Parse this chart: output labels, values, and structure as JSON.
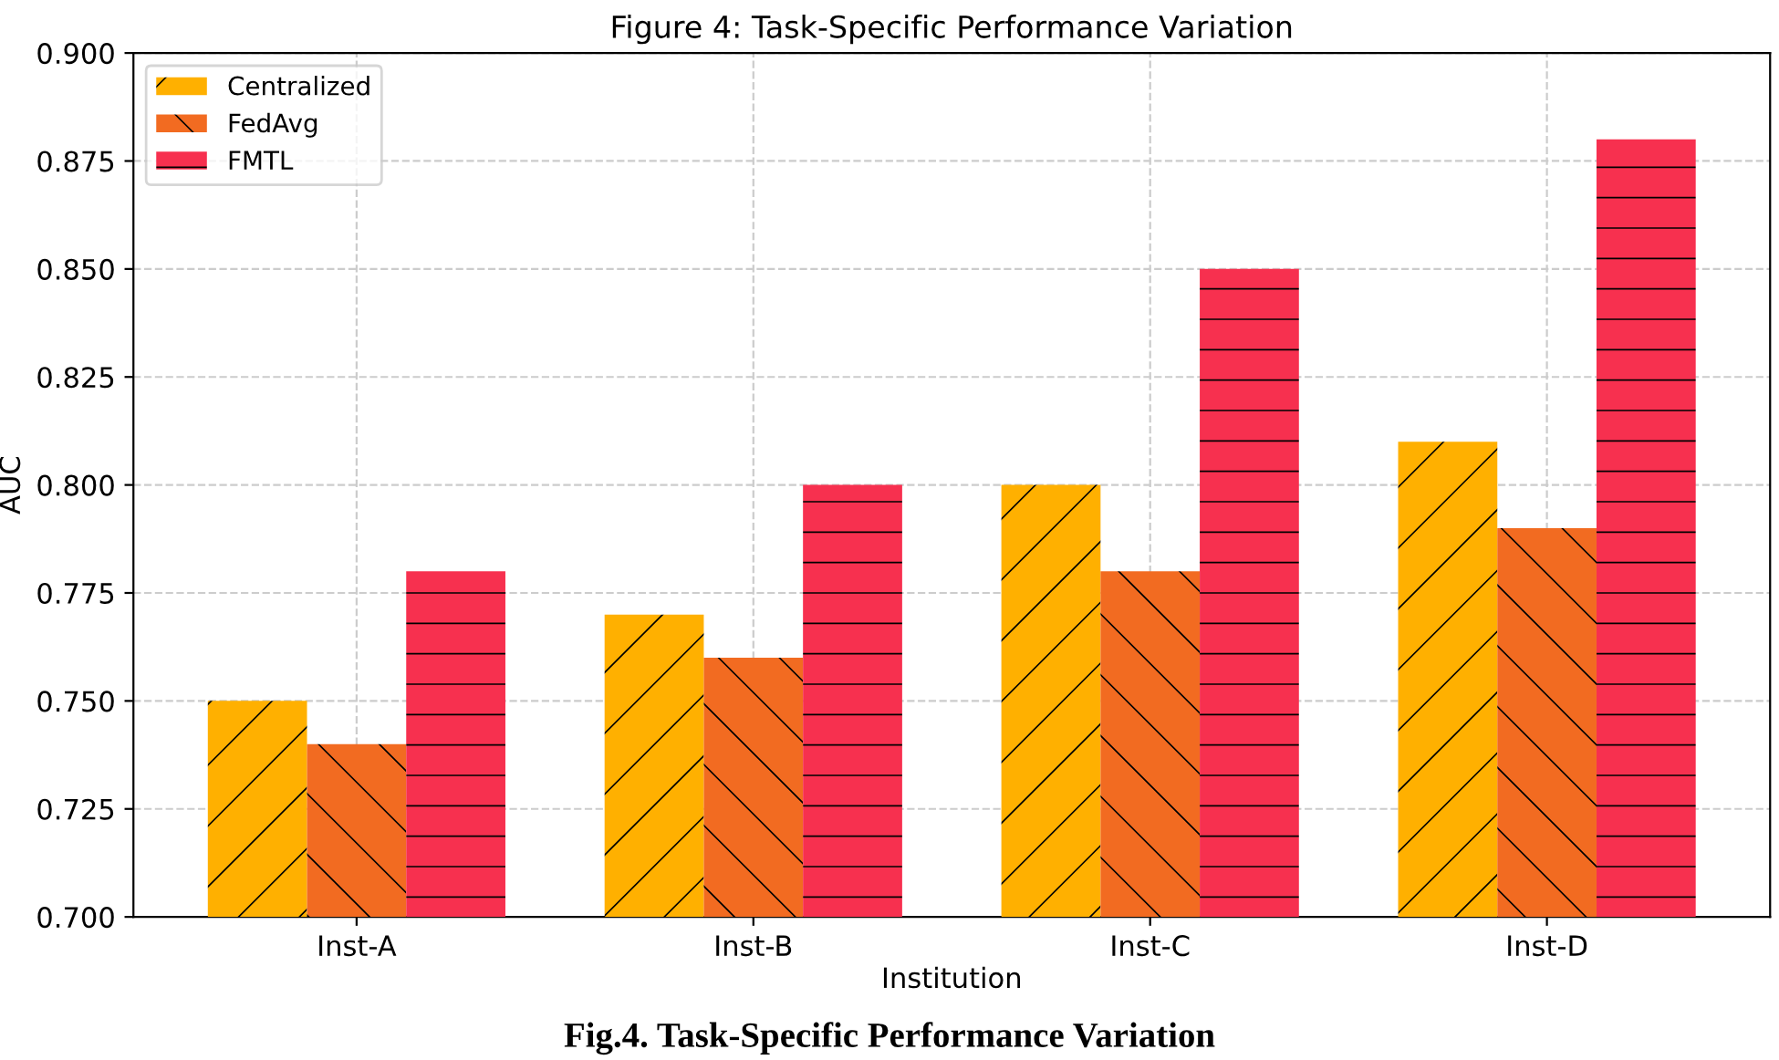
{
  "chart_data": {
    "type": "bar",
    "title": "Figure 4: Task-Specific Performance Variation",
    "xlabel": "Institution",
    "ylabel": "AUC",
    "categories": [
      "Inst-A",
      "Inst-B",
      "Inst-C",
      "Inst-D"
    ],
    "series": [
      {
        "name": "Centralized",
        "color": "#ffb000",
        "values": [
          0.75,
          0.77,
          0.8,
          0.81
        ]
      },
      {
        "name": "FedAvg",
        "color": "#f26b21",
        "values": [
          0.74,
          0.76,
          0.78,
          0.79
        ]
      },
      {
        "name": "FMTL",
        "color": "#f7304f",
        "values": [
          0.78,
          0.8,
          0.85,
          0.88
        ]
      }
    ],
    "ylim": [
      0.7,
      0.9
    ],
    "yticks": [
      {
        "value": 0.7,
        "label": "0.700"
      },
      {
        "value": 0.725,
        "label": "0.725"
      },
      {
        "value": 0.75,
        "label": "0.750"
      },
      {
        "value": 0.775,
        "label": "0.775"
      },
      {
        "value": 0.8,
        "label": "0.800"
      },
      {
        "value": 0.825,
        "label": "0.825"
      },
      {
        "value": 0.85,
        "label": "0.850"
      },
      {
        "value": 0.875,
        "label": "0.875"
      },
      {
        "value": 0.9,
        "label": "0.900"
      }
    ],
    "grid": true,
    "legend": "top left",
    "annotations": [
      "Fig.4. Task-Specific Performance Variation"
    ]
  }
}
